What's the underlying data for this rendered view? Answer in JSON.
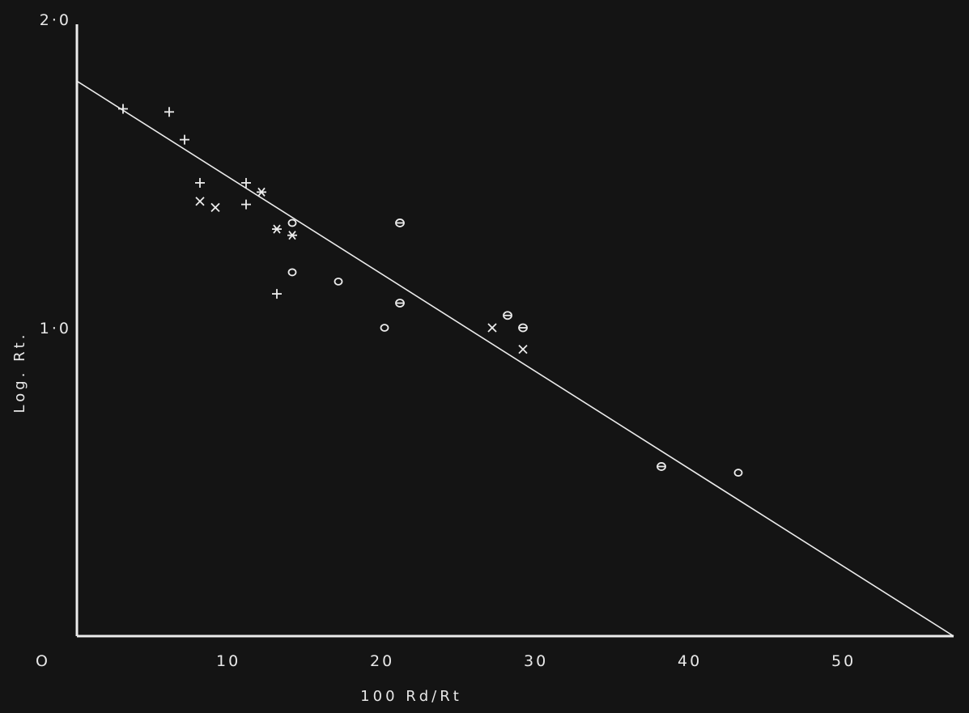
{
  "chart_data": {
    "type": "scatter",
    "title": "",
    "xlabel": "100 Rd/Rt",
    "ylabel": "Log. Rt.",
    "xlim": [
      0,
      57
    ],
    "ylim": [
      0,
      2.0
    ],
    "x_ticks": [
      {
        "value": 0,
        "label": "O"
      },
      {
        "value": 10,
        "label": "10"
      },
      {
        "value": 20,
        "label": "20"
      },
      {
        "value": 30,
        "label": "30"
      },
      {
        "value": 40,
        "label": "40"
      },
      {
        "value": 50,
        "label": "50"
      }
    ],
    "y_ticks": [
      {
        "value": 1.0,
        "label": "1·0"
      },
      {
        "value": 2.0,
        "label": "2·0"
      }
    ],
    "grid": false,
    "colors": {
      "background": "#141414",
      "foreground": "#ececec"
    },
    "fit_line": {
      "x": [
        0,
        57
      ],
      "y": [
        1.8,
        0
      ]
    },
    "points": [
      {
        "x": 3,
        "y": 1.71,
        "marker": "plus"
      },
      {
        "x": 6,
        "y": 1.7,
        "marker": "plus"
      },
      {
        "x": 7,
        "y": 1.61,
        "marker": "plus"
      },
      {
        "x": 8,
        "y": 1.47,
        "marker": "plus"
      },
      {
        "x": 8,
        "y": 1.41,
        "marker": "cross"
      },
      {
        "x": 9,
        "y": 1.39,
        "marker": "cross"
      },
      {
        "x": 11,
        "y": 1.47,
        "marker": "plus"
      },
      {
        "x": 11,
        "y": 1.4,
        "marker": "plus"
      },
      {
        "x": 12,
        "y": 1.44,
        "marker": "star"
      },
      {
        "x": 13,
        "y": 1.32,
        "marker": "star"
      },
      {
        "x": 14,
        "y": 1.3,
        "marker": "star"
      },
      {
        "x": 14,
        "y": 1.34,
        "marker": "circle"
      },
      {
        "x": 14,
        "y": 1.18,
        "marker": "circle"
      },
      {
        "x": 13,
        "y": 1.11,
        "marker": "plus"
      },
      {
        "x": 17,
        "y": 1.15,
        "marker": "circle"
      },
      {
        "x": 20,
        "y": 1.0,
        "marker": "circle"
      },
      {
        "x": 21,
        "y": 1.34,
        "marker": "theta"
      },
      {
        "x": 21,
        "y": 1.08,
        "marker": "theta"
      },
      {
        "x": 27,
        "y": 1.0,
        "marker": "cross"
      },
      {
        "x": 28,
        "y": 1.04,
        "marker": "theta"
      },
      {
        "x": 29,
        "y": 1.0,
        "marker": "theta"
      },
      {
        "x": 29,
        "y": 0.93,
        "marker": "cross"
      },
      {
        "x": 38,
        "y": 0.55,
        "marker": "theta"
      },
      {
        "x": 43,
        "y": 0.53,
        "marker": "circle"
      }
    ]
  }
}
